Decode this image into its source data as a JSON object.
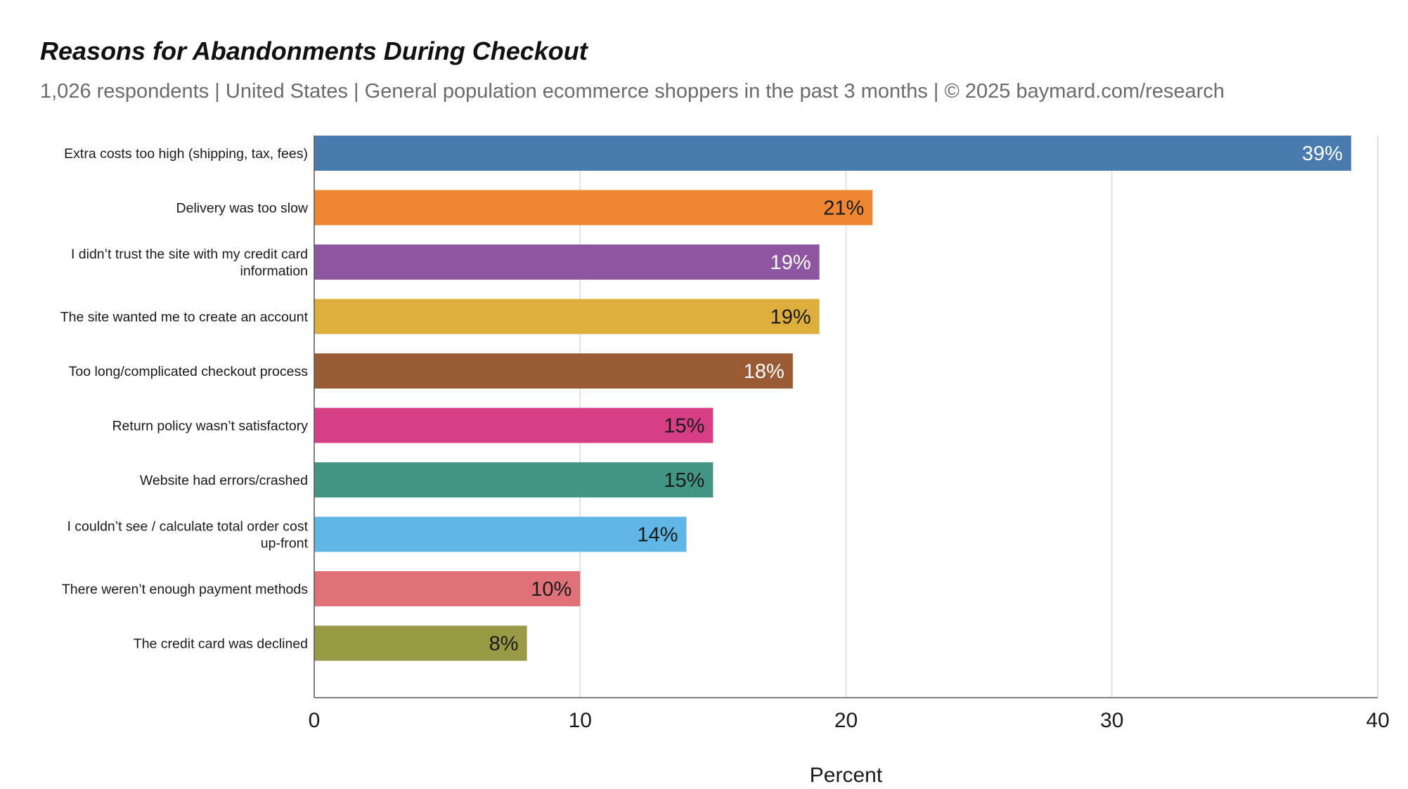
{
  "chart_data": {
    "type": "bar",
    "orientation": "horizontal",
    "title": "Reasons for Abandonments During Checkout",
    "subtitle": "1,026 respondents  |  United States  |  General population ecommerce shoppers in the past 3 months | © 2025 baymard.com/research",
    "xlabel": "Percent",
    "ylabel": "",
    "xlim": [
      0,
      40
    ],
    "x_ticks": [
      0,
      10,
      20,
      30,
      40
    ],
    "grid": true,
    "categories": [
      [
        "Extra costs too high (shipping, tax, fees)"
      ],
      [
        "Delivery was too slow"
      ],
      [
        "I didn’t trust the site with my credit card",
        "information"
      ],
      [
        "The site wanted me to create an account"
      ],
      [
        "Too long/complicated checkout process"
      ],
      [
        "Return policy wasn’t satisfactory"
      ],
      [
        "Website had errors/crashed"
      ],
      [
        "I couldn’t see / calculate total order cost",
        "up-front"
      ],
      [
        "There weren’t enough payment methods"
      ],
      [
        "The credit card was declined"
      ]
    ],
    "values": [
      39,
      21,
      19,
      19,
      18,
      15,
      15,
      14,
      10,
      8
    ],
    "value_labels": [
      "39%",
      "21%",
      "19%",
      "19%",
      "18%",
      "15%",
      "15%",
      "14%",
      "10%",
      "8%"
    ],
    "colors": [
      "#4a7bb0",
      "#ef8632",
      "#8e55a1",
      "#ddae3d",
      "#9a5a34",
      "#d63f85",
      "#439583",
      "#60b7e6",
      "#e07179",
      "#999a45"
    ],
    "label_colors": [
      "#ffffff",
      "#1a1a1a",
      "#ffffff",
      "#1a1a1a",
      "#ffffff",
      "#1a1a1a",
      "#1a1a1a",
      "#1a1a1a",
      "#1a1a1a",
      "#1a1a1a"
    ]
  }
}
